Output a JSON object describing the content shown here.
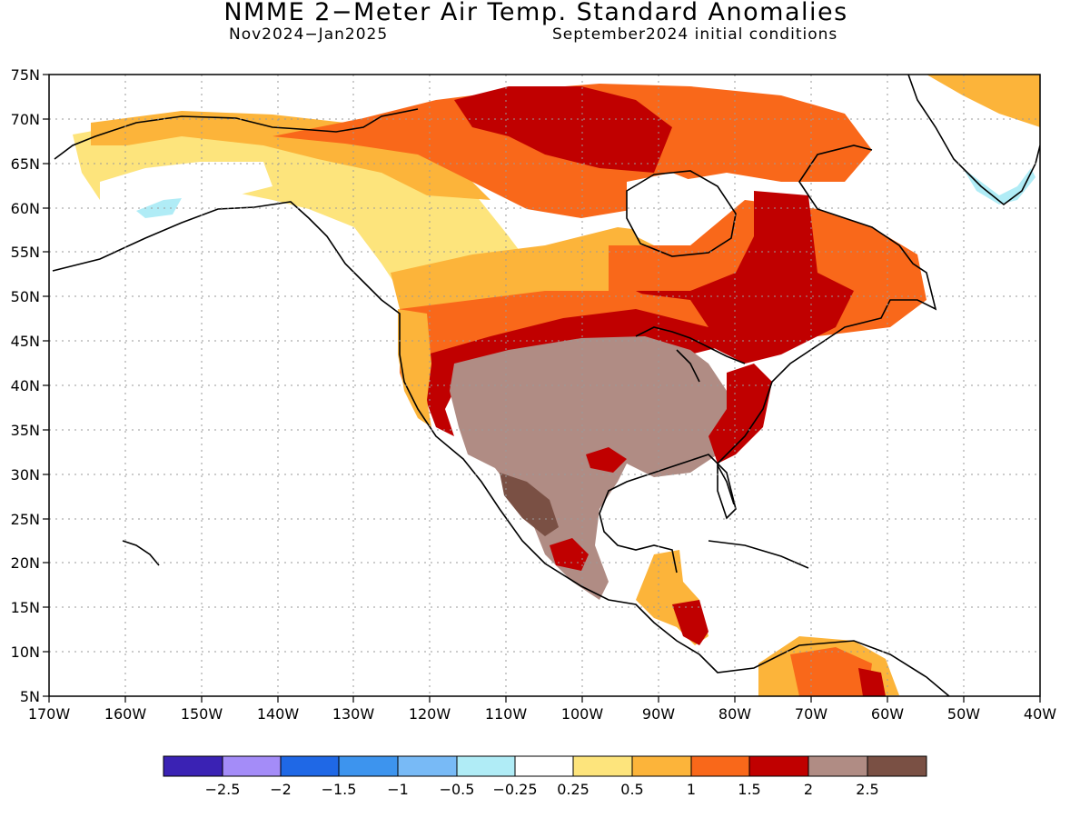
{
  "header": {
    "title": "NMME 2−Meter Air Temp. Standard Anomalies",
    "period": "Nov2024−Jan2025",
    "initial_conditions": "September2024 initial conditions"
  },
  "map": {
    "lat_labels": [
      "75N",
      "70N",
      "65N",
      "60N",
      "55N",
      "50N",
      "45N",
      "40N",
      "35N",
      "30N",
      "25N",
      "20N",
      "15N",
      "10N",
      "5N"
    ],
    "lon_labels": [
      "170W",
      "160W",
      "150W",
      "140W",
      "130W",
      "120W",
      "110W",
      "100W",
      "90W",
      "80W",
      "70W",
      "60W",
      "50W",
      "40W"
    ],
    "lat_range": [
      5,
      75
    ],
    "lon_range": [
      -170,
      -40
    ]
  },
  "legend": {
    "colors": [
      "#3a22b4",
      "#a48cf8",
      "#1f68e6",
      "#3d94ee",
      "#78baf6",
      "#b0ecf6",
      "#ffffff",
      "#fde47c",
      "#fcb43a",
      "#f9681a",
      "#c00000",
      "#b08c84",
      "#7a5044"
    ],
    "labels": [
      "−2.5",
      "−2",
      "−1.5",
      "−1",
      "−0.5",
      "−0.25",
      "0.25",
      "0.5",
      "1",
      "1.5",
      "2",
      "2.5"
    ]
  }
}
